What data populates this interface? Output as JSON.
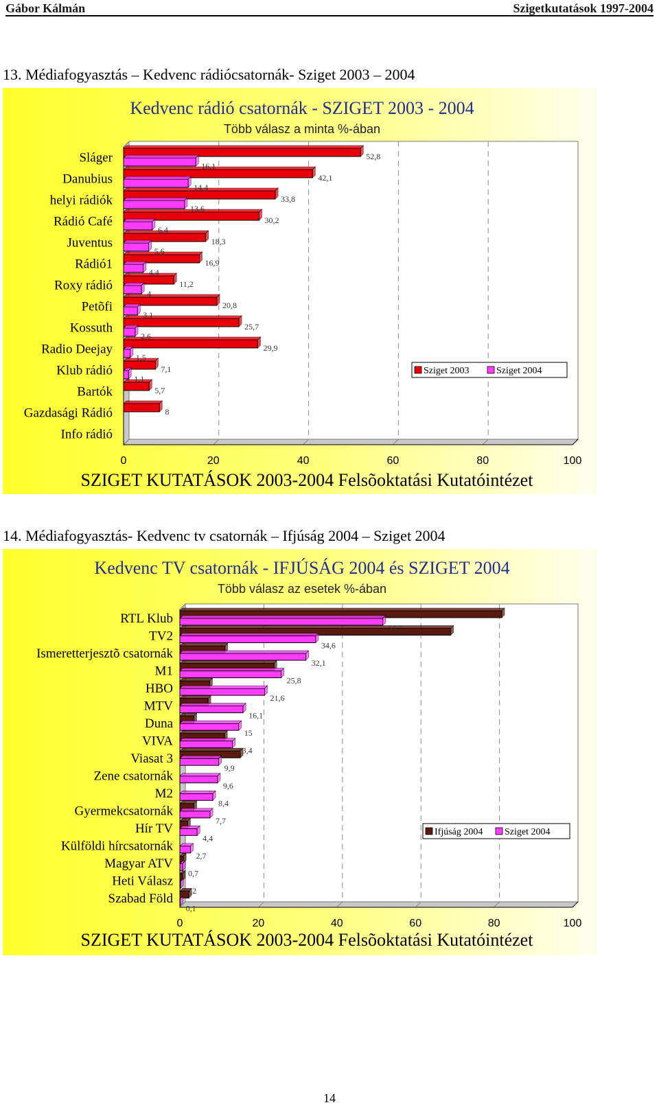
{
  "header": {
    "author": "Gábor Kálmán",
    "doc_title": "Szigetkutatások 1997-2004"
  },
  "sections": [
    {
      "title": "13. Médiafogyasztás – Kedvenc rádiócsatornák- Sziget 2003 – 2004"
    },
    {
      "title": "14. Médiafogyasztás- Kedvenc tv csatornák – Ifjúság 2004 – Sziget 2004"
    }
  ],
  "page_number": "14",
  "colors": {
    "bg_yellow": "#ffff66",
    "red": "#e8000b",
    "magenta": "#ff3cff",
    "brown": "#5a1a10",
    "title_blue": "#1f2f8a"
  },
  "chart_data": [
    {
      "type": "bar",
      "orientation": "horizontal",
      "title": "Kedvenc rádió csatornák - SZIGET 2003 - 2004",
      "subtitle": "Több válasz a minta %-ában",
      "footer": "SZIGET KUTATÁSOK 2003-2004 Felsõoktatási Kutatóintézet",
      "categories": [
        "Sláger",
        "Danubius",
        "helyi rádiók",
        "Rádió Café",
        "Juventus",
        "Rádió1",
        "Roxy rádió",
        "Petõfi",
        "Kossuth",
        "Radio Deejay",
        "Klub rádió",
        "Bartók",
        "Gazdasági Rádió",
        "Info rádió"
      ],
      "series": [
        {
          "name": "Sziget 2003",
          "color": "#e8000b",
          "values": [
            52.8,
            42.1,
            33.8,
            30.2,
            18.3,
            16.9,
            11.2,
            20.8,
            25.7,
            29.9,
            7.1,
            5.7,
            8,
            null
          ],
          "labels": [
            "52,8",
            "42,1",
            "33,8",
            "30,2",
            "18,3",
            "16,9",
            "11,2",
            "20,8",
            "25,7",
            "29,9",
            "7,1",
            "5,7",
            "8",
            ""
          ]
        },
        {
          "name": "Sziget 2004",
          "color": "#ff3cff",
          "values": [
            16.1,
            14.4,
            13.6,
            6.4,
            5.6,
            4.4,
            4,
            3.1,
            2.6,
            1.5,
            1.1,
            null,
            null,
            null
          ],
          "labels": [
            "16,1",
            "14,4",
            "13,6",
            "6,4",
            "5,6",
            "4,4",
            "4",
            "3,1",
            "2,6",
            "1,5",
            "1,1",
            "",
            "",
            ""
          ]
        }
      ],
      "xlim": [
        0,
        100
      ],
      "xticks": [
        "0",
        "20",
        "40",
        "60",
        "80",
        "100"
      ],
      "legend": {
        "placement": "right",
        "items": [
          "Sziget 2003",
          "Sziget 2004"
        ]
      },
      "grid": "vertical dashed"
    },
    {
      "type": "bar",
      "orientation": "horizontal",
      "title": "Kedvenc TV csatornák - IFJÚSÁG 2004 és SZIGET  2004",
      "subtitle": "Több válasz az esetek %-ában",
      "footer": "SZIGET KUTATÁSOK 2003-2004 Felsõoktatási Kutatóintézet",
      "categories": [
        "RTL Klub",
        "TV2",
        "Ismeretterjesztõ csatornák",
        "M1",
        "HBO",
        "MTV",
        "Duna",
        "VIVA",
        "Viasat 3",
        "Zene csatornák",
        "M2",
        "Gyermekcsatornák",
        "Hír TV",
        "Külföldi hírcsatornák",
        "Magyar ATV",
        "Heti Válasz",
        "Szabad Föld"
      ],
      "series": [
        {
          "name": "Ifjúság 2004",
          "color": "#5a1a10",
          "values": [
            82,
            69,
            11.5,
            24,
            7.6,
            7.2,
            3.6,
            11.4,
            15.4,
            null,
            null,
            3.6,
            2,
            null,
            0.9,
            0.7,
            2.3
          ]
        },
        {
          "name": "Sziget 2004",
          "color": "#ff3cff",
          "values": [
            51.7,
            34.6,
            32.1,
            25.8,
            21.6,
            16.1,
            15,
            13.4,
            9.9,
            9.6,
            8.4,
            7.7,
            4.4,
            2.7,
            0.7,
            0.2,
            0.1
          ],
          "labels": [
            "51,7",
            "34,6",
            "32,1",
            "25,8",
            "21,6",
            "16,1",
            "15",
            "13,4",
            "9,9",
            "9,6",
            "8,4",
            "7,7",
            "4,4",
            "2,7",
            "0,7",
            "0,2",
            "0,1"
          ]
        }
      ],
      "xlim": [
        0,
        100
      ],
      "xticks": [
        "0",
        "20",
        "40",
        "60",
        "80",
        "100"
      ],
      "legend": {
        "placement": "right",
        "items": [
          "Ifjúság 2004",
          "Sziget 2004"
        ]
      },
      "grid": "vertical dashed"
    }
  ]
}
